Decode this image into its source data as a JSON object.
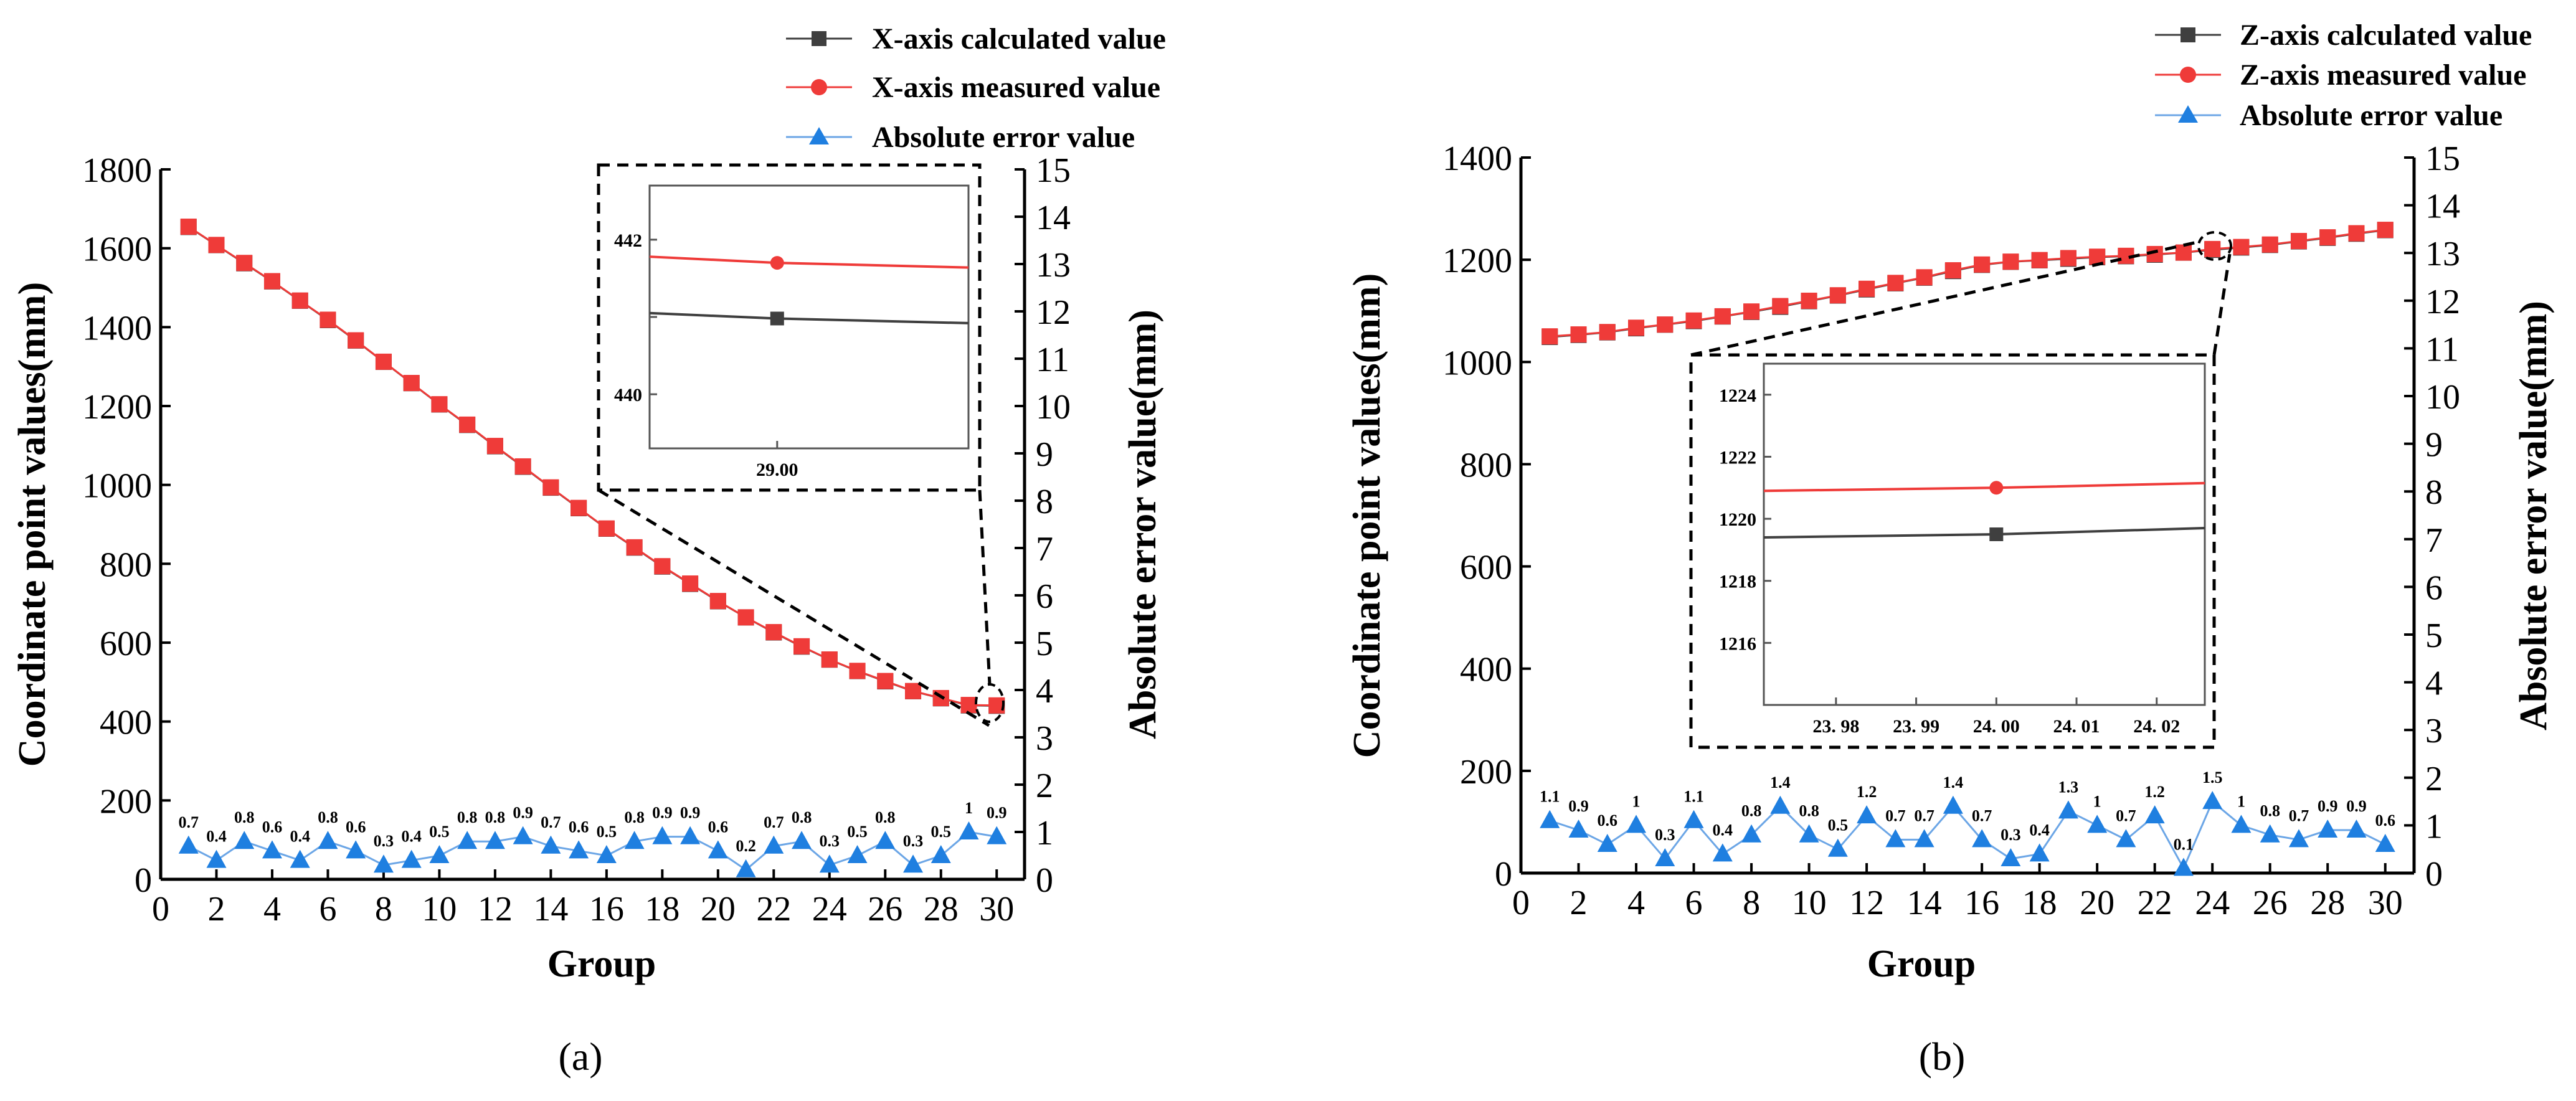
{
  "chart_data": [
    {
      "type": "line",
      "panel_label": "(a)",
      "xlabel": "Group",
      "ylabel": "Coordinate point values(mm)",
      "ylabel_right": "Absolute error value(mm)",
      "xlim": [
        0,
        31
      ],
      "xticks": [
        0,
        2,
        4,
        6,
        8,
        10,
        12,
        14,
        16,
        18,
        20,
        22,
        24,
        26,
        28,
        30
      ],
      "ylim": [
        0,
        1800
      ],
      "yticks": [
        0,
        200,
        400,
        600,
        800,
        1000,
        1200,
        1400,
        1600,
        1800
      ],
      "ylim_right": [
        0,
        15
      ],
      "yticks_right": [
        0,
        1,
        2,
        3,
        4,
        5,
        6,
        7,
        8,
        9,
        10,
        11,
        12,
        13,
        14,
        15
      ],
      "legend": {
        "calc": "X-axis calculated value",
        "meas": "X-axis measured value",
        "err": "Absolute error value"
      },
      "x": [
        1,
        2,
        3,
        4,
        5,
        6,
        7,
        8,
        9,
        10,
        11,
        12,
        13,
        14,
        15,
        16,
        17,
        18,
        19,
        20,
        21,
        22,
        23,
        24,
        25,
        26,
        27,
        28,
        29,
        30
      ],
      "series": [
        {
          "name": "X-axis calculated value",
          "values": [
            1654,
            1608,
            1562,
            1516,
            1467,
            1418,
            1366,
            1312,
            1258,
            1204,
            1152,
            1098,
            1046,
            993,
            941,
            889,
            841,
            793,
            749,
            705,
            664,
            626,
            590,
            557,
            528,
            502,
            477,
            459,
            441,
            440
          ]
        },
        {
          "name": "X-axis measured value",
          "values": [
            1654.7,
            1608.4,
            1562.8,
            1516.6,
            1467.4,
            1418.8,
            1366.6,
            1312.3,
            1258.4,
            1204.5,
            1152.8,
            1098.8,
            1046.9,
            993.7,
            941.6,
            889.5,
            841.8,
            793.9,
            749.9,
            705.6,
            664.2,
            626.7,
            590.8,
            557.3,
            528.5,
            502.8,
            477.3,
            459.5,
            442,
            440.9
          ]
        },
        {
          "name": "Absolute error value",
          "axis": "right",
          "values": [
            0.7,
            0.4,
            0.8,
            0.6,
            0.4,
            0.8,
            0.6,
            0.3,
            0.4,
            0.5,
            0.8,
            0.8,
            0.9,
            0.7,
            0.6,
            0.5,
            0.8,
            0.9,
            0.9,
            0.6,
            0.2,
            0.7,
            0.8,
            0.3,
            0.5,
            0.8,
            0.3,
            0.5,
            1,
            0.9
          ]
        }
      ],
      "data_labels": [
        "0.7",
        "0.4",
        "0.8",
        "0.6",
        "0.4",
        "0.8",
        "0.6",
        "0.3",
        "0.4",
        "0.5",
        "0.8",
        "0.8",
        "0.9",
        "0.7",
        "0.6",
        "0.5",
        "0.8",
        "0.9",
        "0.9",
        "0.6",
        "0.2",
        "0.7",
        "0.8",
        "0.3",
        "0.5",
        "0.8",
        "0.3",
        "0.5",
        "1",
        "0.9"
      ],
      "inset": {
        "xlim": [
          28.7,
          29.45
        ],
        "xticks": [
          29.0
        ],
        "xtick_labels": [
          "29.00"
        ],
        "ylim": [
          439.3,
          442.7
        ],
        "yticks": [
          440,
          441,
          442
        ],
        "ytick_labels": [
          "440",
          "",
          "442"
        ],
        "calc_line": {
          "x": [
            28.7,
            29.0,
            29.45
          ],
          "y": [
            441.05,
            440.98,
            440.92
          ]
        },
        "meas_line": {
          "x": [
            28.7,
            29.0,
            29.45
          ],
          "y": [
            441.78,
            441.7,
            441.64
          ]
        },
        "marker_x": 29.0
      }
    },
    {
      "type": "line",
      "panel_label": "(b)",
      "xlabel": "Group",
      "ylabel": "Coordinate point values(mm)",
      "ylabel_right": "Absolute error value(mm)",
      "xlim": [
        0,
        31
      ],
      "xticks": [
        0,
        2,
        4,
        6,
        8,
        10,
        12,
        14,
        16,
        18,
        20,
        22,
        24,
        26,
        28,
        30
      ],
      "ylim": [
        0,
        1400
      ],
      "yticks": [
        0,
        200,
        400,
        600,
        800,
        1000,
        1200,
        1400
      ],
      "ylim_right": [
        0,
        15
      ],
      "yticks_right": [
        0,
        1,
        2,
        3,
        4,
        5,
        6,
        7,
        8,
        9,
        10,
        11,
        12,
        13,
        14,
        15
      ],
      "legend": {
        "calc": "Z-axis calculated value",
        "meas": "Z-axis measured value",
        "err": "Absolute error value"
      },
      "x": [
        1,
        2,
        3,
        4,
        5,
        6,
        7,
        8,
        9,
        10,
        11,
        12,
        13,
        14,
        15,
        16,
        17,
        18,
        19,
        20,
        21,
        22,
        23,
        24,
        25,
        26,
        27,
        28,
        29,
        30
      ],
      "series": [
        {
          "name": "Z-axis calculated value",
          "values": [
            1049,
            1053,
            1058,
            1066,
            1073,
            1080,
            1089,
            1098,
            1108,
            1119,
            1130,
            1142,
            1154,
            1165,
            1178,
            1190,
            1196,
            1199,
            1202,
            1205,
            1207,
            1210,
            1214,
            1219.5,
            1224,
            1229,
            1236,
            1243,
            1251,
            1258
          ]
        },
        {
          "name": "Z-axis measured value",
          "values": [
            1050.1,
            1053.9,
            1058.6,
            1067,
            1073.3,
            1081.1,
            1089.4,
            1098.8,
            1109.4,
            1119.8,
            1130.5,
            1143.2,
            1154.7,
            1165.7,
            1179.4,
            1190.7,
            1196.3,
            1199.4,
            1203.3,
            1206,
            1207.7,
            1211.2,
            1214.1,
            1221,
            1225,
            1229.8,
            1236.7,
            1243.9,
            1251.9,
            1258.6
          ]
        },
        {
          "name": "Absolute error value",
          "axis": "right",
          "values": [
            1.1,
            0.9,
            0.6,
            1,
            0.3,
            1.1,
            0.4,
            0.8,
            1.4,
            0.8,
            0.5,
            1.2,
            0.7,
            0.7,
            1.4,
            0.7,
            0.3,
            0.4,
            1.3,
            1,
            0.7,
            1.2,
            0.1,
            1.5,
            1,
            0.8,
            0.7,
            0.9,
            0.9,
            0.6
          ]
        }
      ],
      "data_labels": [
        "1.1",
        "0.9",
        "0.6",
        "1",
        "0.3",
        "1.1",
        "0.4",
        "0.8",
        "1.4",
        "0.8",
        "0.5",
        "1.2",
        "0.7",
        "0.7",
        "1.4",
        "0.7",
        "0.3",
        "0.4",
        "1.3",
        "1",
        "0.7",
        "1.2",
        "0.1",
        "1.5",
        "1",
        "0.8",
        "0.7",
        "0.9",
        "0.9",
        "0.6"
      ],
      "inset": {
        "xlim": [
          23.971,
          24.026
        ],
        "xticks": [
          23.98,
          23.99,
          24.0,
          24.01,
          24.02
        ],
        "xtick_labels": [
          "23. 98",
          "23. 99",
          "24. 00",
          "24. 01",
          "24. 02"
        ],
        "ylim": [
          1214,
          1225
        ],
        "yticks": [
          1216,
          1218,
          1220,
          1222,
          1224
        ],
        "ytick_labels": [
          "1216",
          "1218",
          "1220",
          "1222",
          "1224"
        ],
        "calc_line": {
          "x": [
            23.971,
            24.0,
            24.026
          ],
          "y": [
            1219.4,
            1219.5,
            1219.7
          ]
        },
        "meas_line": {
          "x": [
            23.971,
            24.0,
            24.026
          ],
          "y": [
            1220.9,
            1221.0,
            1221.15
          ]
        },
        "marker_x": 24.0
      }
    }
  ],
  "colors": {
    "calc": "#3f3f3f",
    "meas": "#ef3b39",
    "err": "#1f7fe0",
    "err_line": "#6ca6e6"
  }
}
